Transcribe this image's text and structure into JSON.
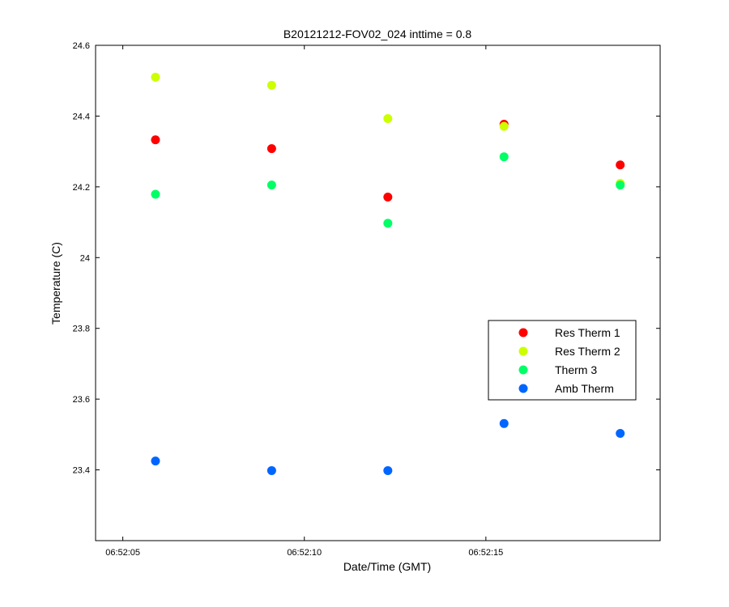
{
  "chart_data": {
    "type": "scatter",
    "title": "B20121212-FOV02_024 inttime = 0.8",
    "xlabel": "Date/Time (GMT)",
    "ylabel": "Temperature (C)",
    "xlim": [
      4.25,
      19.8
    ],
    "ylim": [
      23.2,
      24.6
    ],
    "x_ticks": [
      5,
      10,
      15
    ],
    "x_tick_labels": [
      "06:52:05",
      "06:52:10",
      "06:52:15"
    ],
    "y_ticks": [
      23.4,
      23.6,
      23.8,
      24,
      24.2,
      24.4,
      24.6
    ],
    "y_tick_labels": [
      "23.4",
      "23.6",
      "23.8",
      "24",
      "24.2",
      "24.4",
      "24.6"
    ],
    "x": [
      5.9,
      9.1,
      12.3,
      15.5,
      18.7
    ],
    "x_unit": "seconds after 06:52:00 GMT",
    "grid": false,
    "legend_position": "right",
    "series": [
      {
        "name": "Res Therm 1",
        "color": "#ff0000",
        "values": [
          24.333,
          24.308,
          24.171,
          24.377,
          24.262
        ]
      },
      {
        "name": "Res Therm 2",
        "color": "#ccff00",
        "values": [
          24.51,
          24.487,
          24.393,
          24.371,
          24.21
        ]
      },
      {
        "name": "Therm 3",
        "color": "#00ff66",
        "values": [
          24.179,
          24.205,
          24.097,
          24.285,
          24.205
        ]
      },
      {
        "name": "Amb Therm",
        "color": "#0066ff",
        "values": [
          23.425,
          23.398,
          23.398,
          23.531,
          23.503
        ]
      }
    ]
  }
}
